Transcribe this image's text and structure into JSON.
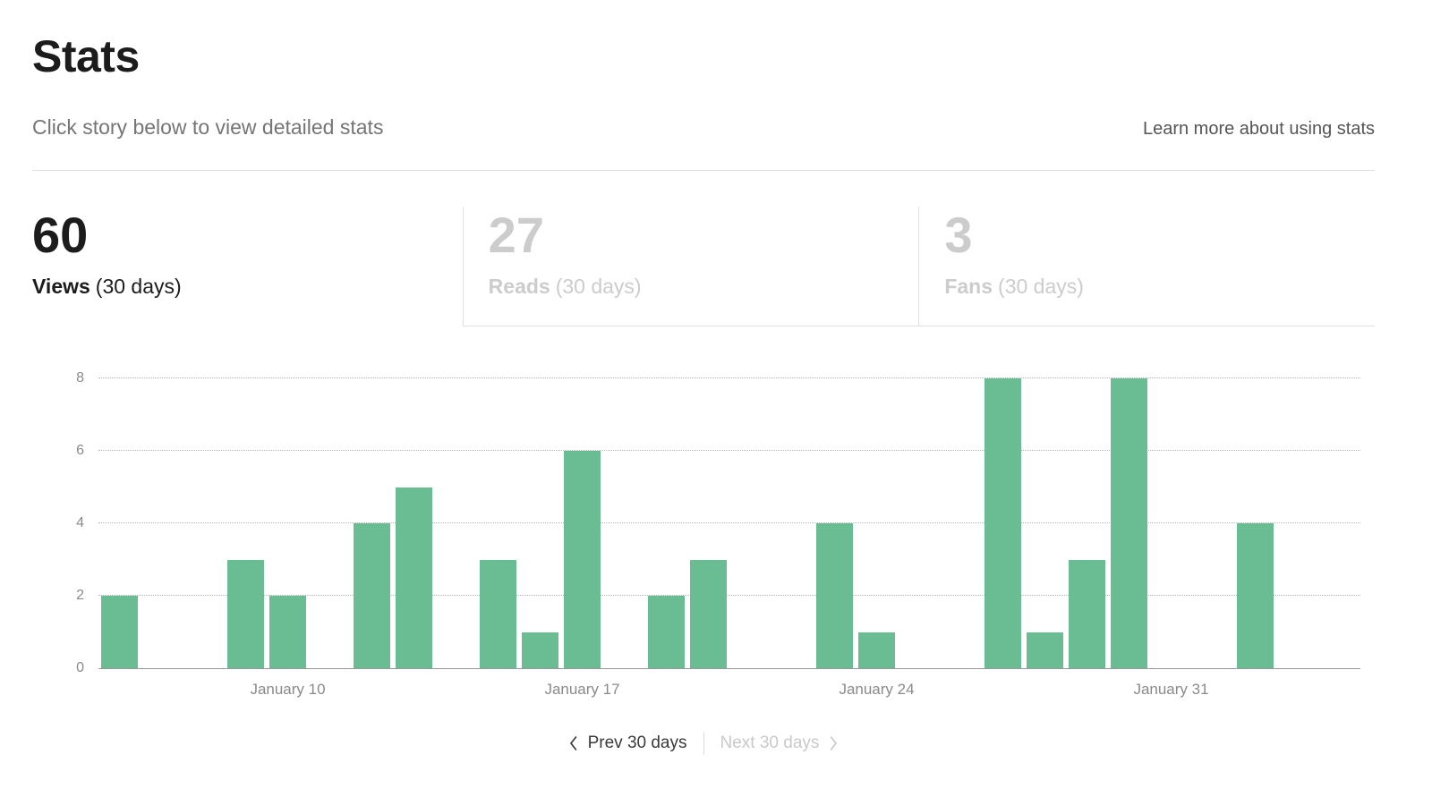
{
  "page": {
    "title": "Stats",
    "subtitle": "Click story below to view detailed stats",
    "learn_more_link": "Learn more about using stats"
  },
  "tabs": [
    {
      "value": "60",
      "label": "Views",
      "suffix": "(30 days)",
      "active": true
    },
    {
      "value": "27",
      "label": "Reads",
      "suffix": "(30 days)",
      "active": false
    },
    {
      "value": "3",
      "label": "Fans",
      "suffix": "(30 days)",
      "active": false
    }
  ],
  "pagination": {
    "prev_label": "Prev 30 days",
    "next_label": "Next 30 days"
  },
  "chart_data": {
    "type": "bar",
    "total_views": 60,
    "values": [
      2,
      0,
      0,
      3,
      2,
      0,
      4,
      5,
      0,
      3,
      1,
      6,
      0,
      2,
      3,
      0,
      0,
      4,
      1,
      0,
      0,
      8,
      1,
      3,
      8,
      0,
      0,
      4,
      0,
      0
    ],
    "x_tick_labels": [
      {
        "index": 4,
        "label": "January 10"
      },
      {
        "index": 11,
        "label": "January 17"
      },
      {
        "index": 18,
        "label": "January 24"
      },
      {
        "index": 25,
        "label": "January 31"
      }
    ],
    "y_ticks": [
      0,
      2,
      4,
      6,
      8
    ],
    "ylim": [
      0,
      8
    ],
    "bar_color": "#6abd93",
    "grid": "dotted-horizontal",
    "legend": "none"
  },
  "colors": {
    "bar_green": "#6abd93",
    "text_primary": "#1c1c1c",
    "text_secondary": "#757575",
    "text_disabled": "#cccccc",
    "border": "#e0e0e0"
  }
}
